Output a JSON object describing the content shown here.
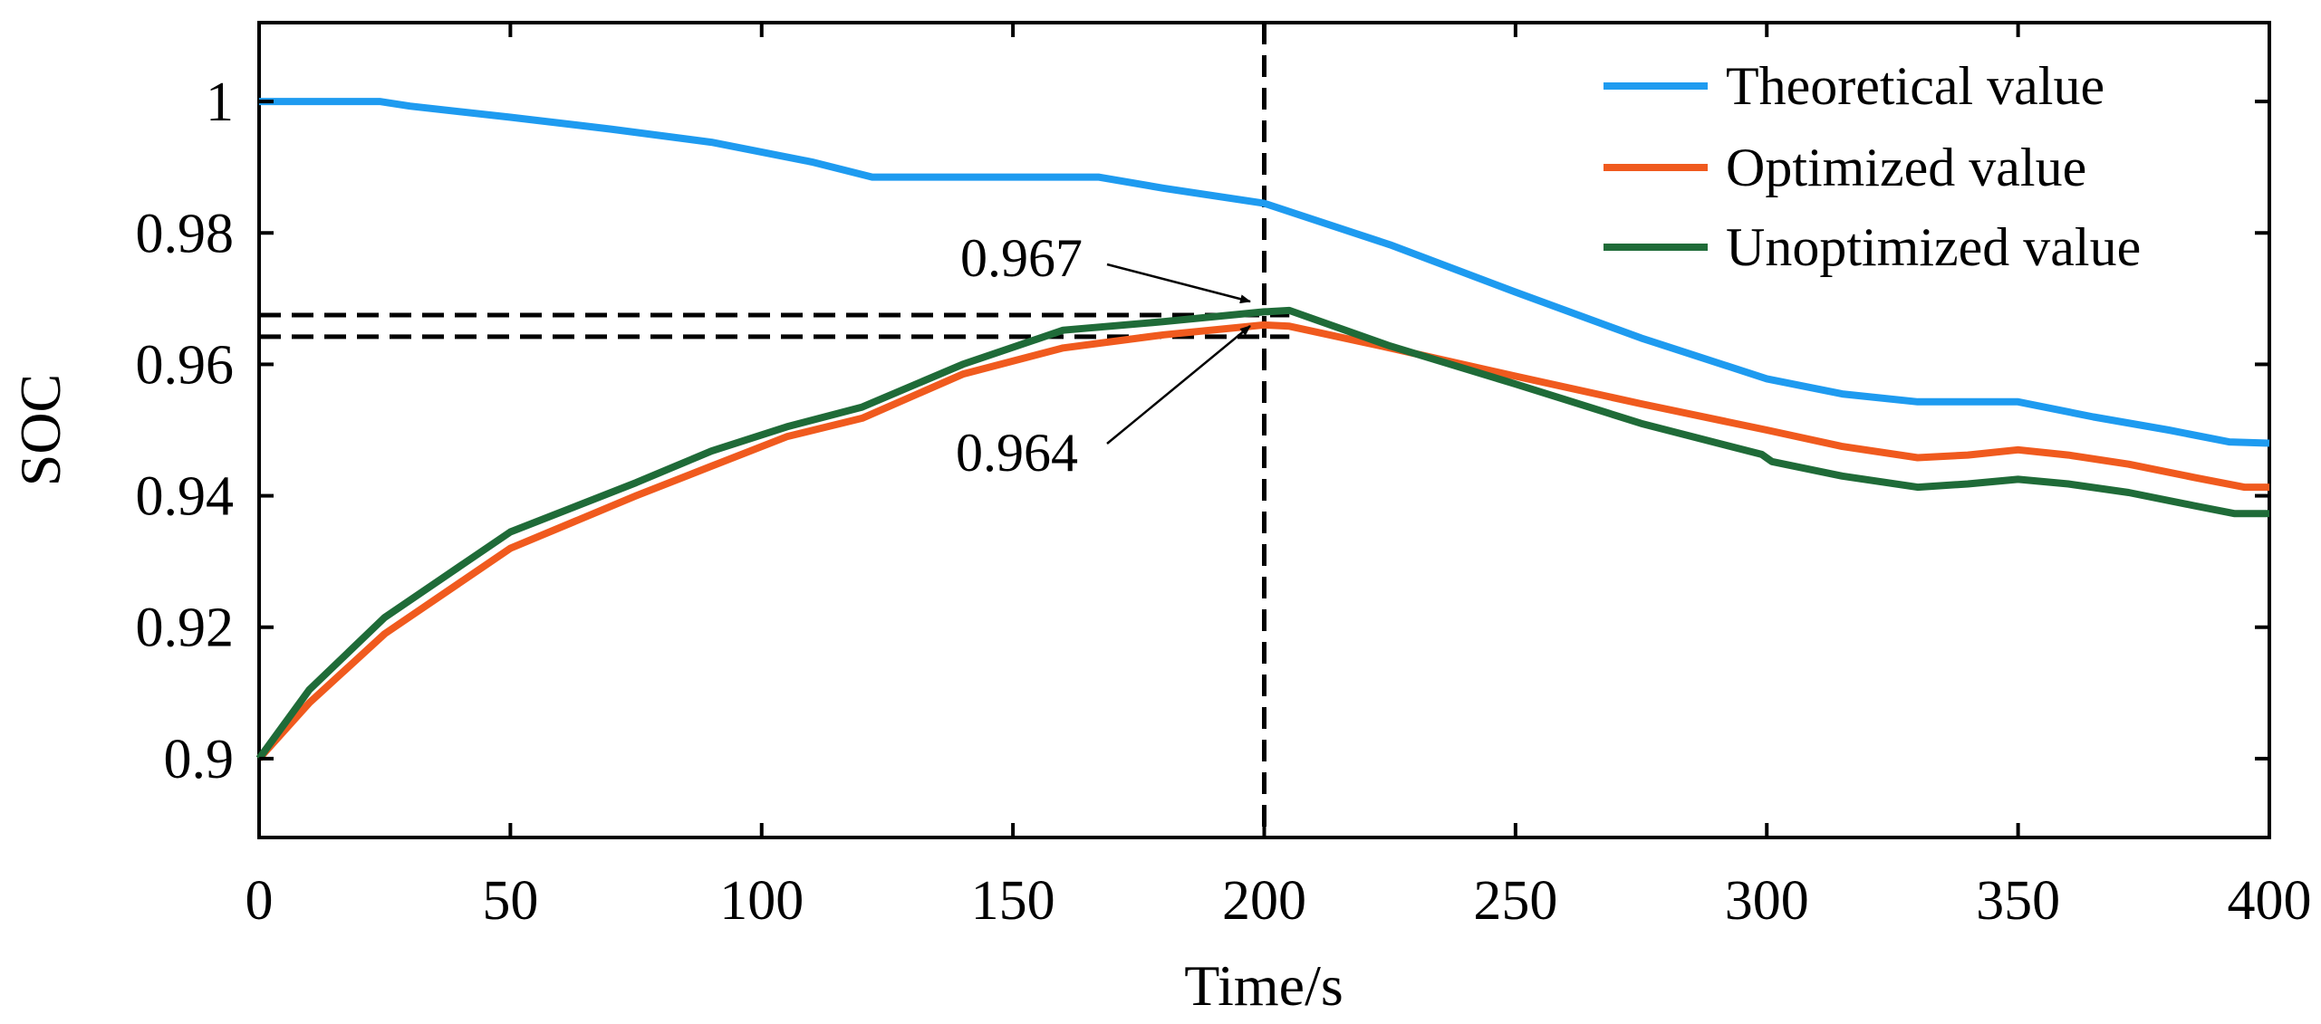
{
  "chart_data": {
    "type": "line",
    "title": "",
    "xlabel": "Time/s",
    "ylabel": "SOC",
    "xlim": [
      0,
      400
    ],
    "ylim": [
      0.888,
      1.012
    ],
    "xticks": [
      0,
      50,
      100,
      150,
      200,
      250,
      300,
      350,
      400
    ],
    "xtick_labels": [
      "0",
      "50",
      "100",
      "150",
      "200",
      "250",
      "300",
      "350",
      "400"
    ],
    "yticks": [
      0.9,
      0.92,
      0.94,
      0.96,
      0.98,
      1.0
    ],
    "ytick_labels": [
      "0.9",
      "0.92",
      "0.94",
      "0.96",
      "0.98",
      "1"
    ],
    "grid": false,
    "legend_position": "top-right",
    "series": [
      {
        "name": "Theoretical value",
        "color": "#1E9BF0",
        "points": [
          [
            0,
            1.0
          ],
          [
            24,
            1.0
          ],
          [
            30,
            0.9993
          ],
          [
            50,
            0.9976
          ],
          [
            70,
            0.9958
          ],
          [
            90,
            0.9938
          ],
          [
            110,
            0.9908
          ],
          [
            122,
            0.9885
          ],
          [
            167,
            0.9885
          ],
          [
            180,
            0.9868
          ],
          [
            200,
            0.9845
          ],
          [
            225,
            0.9782
          ],
          [
            250,
            0.971
          ],
          [
            275,
            0.964
          ],
          [
            300,
            0.9578
          ],
          [
            315,
            0.9555
          ],
          [
            330,
            0.9543
          ],
          [
            350,
            0.9543
          ],
          [
            365,
            0.952
          ],
          [
            380,
            0.95
          ],
          [
            392,
            0.9482
          ],
          [
            400,
            0.948
          ]
        ]
      },
      {
        "name": "Optimized value",
        "color": "#F05A1E",
        "points": [
          [
            0,
            0.9
          ],
          [
            10,
            0.9085
          ],
          [
            25,
            0.919
          ],
          [
            50,
            0.932
          ],
          [
            75,
            0.94
          ],
          [
            90,
            0.9445
          ],
          [
            105,
            0.949
          ],
          [
            120,
            0.9518
          ],
          [
            140,
            0.9585
          ],
          [
            160,
            0.9625
          ],
          [
            180,
            0.9645
          ],
          [
            200,
            0.966
          ],
          [
            205,
            0.9658
          ],
          [
            225,
            0.9625
          ],
          [
            250,
            0.9582
          ],
          [
            275,
            0.954
          ],
          [
            300,
            0.95
          ],
          [
            315,
            0.9475
          ],
          [
            330,
            0.9458
          ],
          [
            340,
            0.9462
          ],
          [
            350,
            0.947
          ],
          [
            360,
            0.9462
          ],
          [
            372,
            0.9448
          ],
          [
            385,
            0.9428
          ],
          [
            395,
            0.9413
          ],
          [
            400,
            0.9413
          ]
        ]
      },
      {
        "name": "Unoptimized value",
        "color": "#1F6B38",
        "points": [
          [
            0,
            0.9
          ],
          [
            10,
            0.9105
          ],
          [
            25,
            0.9215
          ],
          [
            50,
            0.9345
          ],
          [
            75,
            0.942
          ],
          [
            90,
            0.9468
          ],
          [
            105,
            0.9505
          ],
          [
            120,
            0.9535
          ],
          [
            140,
            0.96
          ],
          [
            160,
            0.9652
          ],
          [
            180,
            0.9665
          ],
          [
            200,
            0.968
          ],
          [
            205,
            0.9682
          ],
          [
            225,
            0.9628
          ],
          [
            250,
            0.957
          ],
          [
            275,
            0.951
          ],
          [
            299,
            0.9463
          ],
          [
            301,
            0.9452
          ],
          [
            315,
            0.943
          ],
          [
            330,
            0.9413
          ],
          [
            340,
            0.9418
          ],
          [
            350,
            0.9425
          ],
          [
            360,
            0.9418
          ],
          [
            372,
            0.9405
          ],
          [
            385,
            0.9385
          ],
          [
            393,
            0.9373
          ],
          [
            400,
            0.9373
          ]
        ]
      }
    ],
    "reference_lines": [
      {
        "kind": "vertical",
        "x": 200
      },
      {
        "kind": "horizontal",
        "y": 0.9675,
        "x_from": 0,
        "x_to": 205
      },
      {
        "kind": "horizontal",
        "y": 0.9642,
        "x_from": 0,
        "x_to": 205
      }
    ],
    "annotations": [
      {
        "text": "0.967",
        "target": [
          200,
          0.9688
        ]
      },
      {
        "text": "0.964",
        "target": [
          200,
          0.9655
        ]
      }
    ]
  }
}
